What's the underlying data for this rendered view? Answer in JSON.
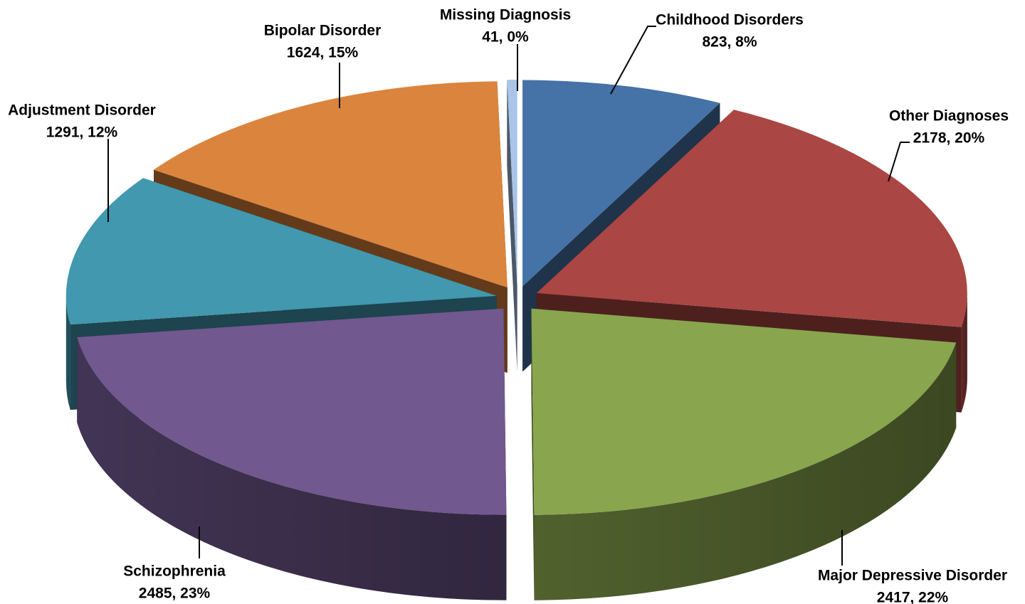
{
  "chart_data": {
    "type": "pie",
    "style": "3d-exploded",
    "categories": [
      "Childhood Disorders",
      "Other Diagnoses",
      "Major Depressive Disorder",
      "Schizophrenia",
      "Adjustment Disorder",
      "Bipolar Disorder",
      "Missing Diagnosis"
    ],
    "values": [
      823,
      2178,
      2417,
      2485,
      1291,
      1624,
      41
    ],
    "percent_labels": [
      "8%",
      "20%",
      "22%",
      "23%",
      "12%",
      "15%",
      "0%"
    ],
    "value_labels": [
      "823, 8%",
      "2178, 20%",
      "2417, 22%",
      "2485, 23%",
      "1291, 12%",
      "1624, 15%",
      "41, 0%"
    ],
    "colors": [
      "#4572A7",
      "#AA4643",
      "#89A54E",
      "#71588F",
      "#4198AF",
      "#DB843D",
      "#A9C4E6"
    ],
    "legend": "none"
  }
}
